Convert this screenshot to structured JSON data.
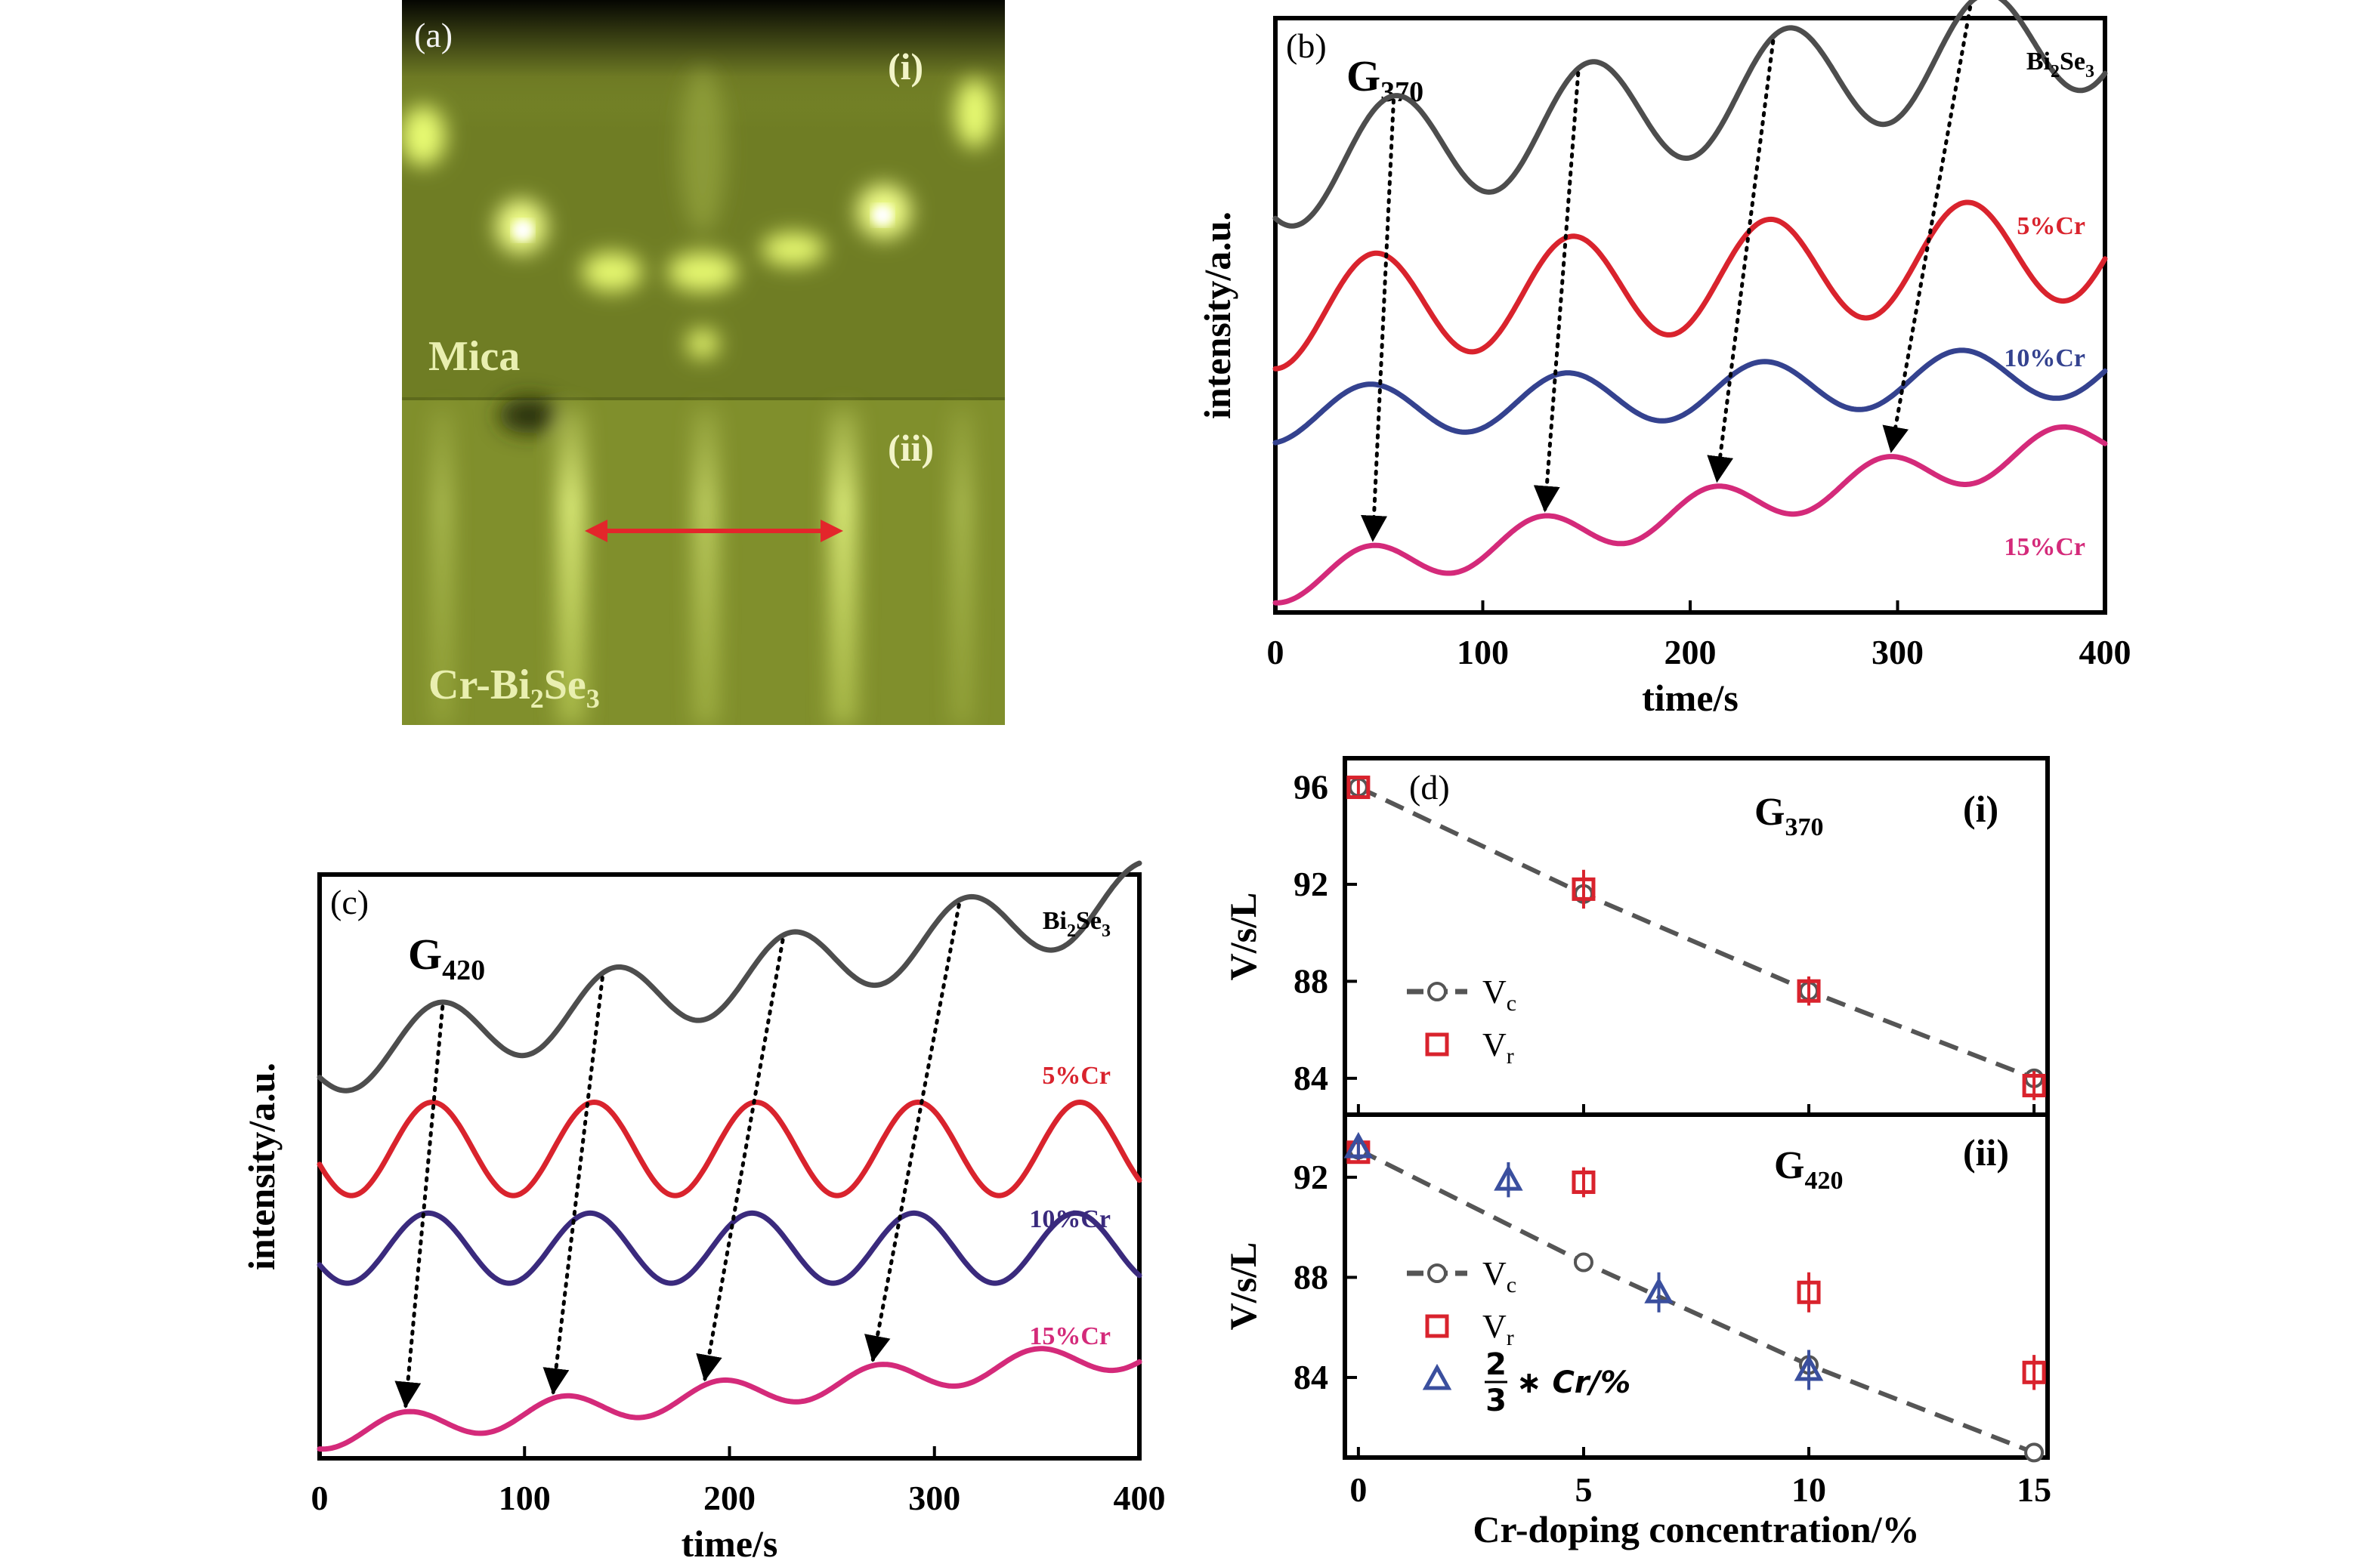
{
  "figure": {
    "panels": {
      "a": {
        "label": "(a)",
        "top_roman": "(i)",
        "bottom_roman": "(ii)",
        "top_material": "Mica",
        "bottom_material_prefix": "Cr-Bi",
        "bottom_material_sub1": "2",
        "bottom_material_mid": "Se",
        "bottom_material_sub2": "3"
      }
    },
    "colors": {
      "bi2se3": "#4d4d4d",
      "cr5": "#d9232d",
      "cr10": "#34428f",
      "cr10_c": "#3a2a7d",
      "cr15": "#d42a7a",
      "dashed_fit": "#555555",
      "vr": "#d9232d",
      "triangle": "#3a4f9e"
    }
  },
  "chart_data": [
    {
      "id": "b",
      "type": "line",
      "panel_label": "(b)",
      "group_main": "G",
      "group_sub": "370",
      "xlabel": "time/s",
      "ylabel": "intensity/a.u.",
      "xlim": [
        0,
        400
      ],
      "xticks": [
        "0",
        "100",
        "200",
        "300",
        "400"
      ],
      "series": [
        {
          "name": "Bi₂Se₃",
          "name_main": "Bi",
          "name_sub1": "2",
          "name_mid": "Se",
          "name_sub2": "3",
          "period": 95,
          "phase_peak": 57,
          "offset": 0.74,
          "amplitude": 0.095,
          "drift": 0.0006
        },
        {
          "name": "5%Cr",
          "period": 95,
          "phase_peak": 48,
          "offset": 0.5,
          "amplitude": 0.09,
          "drift": 0.0003
        },
        {
          "name": "10%Cr",
          "period": 95,
          "phase_peak": 45,
          "offset": 0.33,
          "amplitude": 0.045,
          "drift": 0.0002
        },
        {
          "name": "15%Cr",
          "period": 83,
          "phase_peak": 45,
          "offset": 0.05,
          "amplitude": 0.035,
          "drift": 0.0006
        }
      ],
      "arrow_peaks": [
        [
          57,
          47
        ],
        [
          146,
          130
        ],
        [
          240,
          213
        ],
        [
          335,
          297
        ]
      ]
    },
    {
      "id": "c",
      "type": "line",
      "panel_label": "(c)",
      "group_main": "G",
      "group_sub": "420",
      "xlabel": "time/s",
      "ylabel": "intensity/a.u.",
      "xlim": [
        0,
        400
      ],
      "xticks": [
        "0",
        "100",
        "200",
        "300",
        "400"
      ],
      "series": [
        {
          "name": "Bi₂Se₃",
          "name_main": "Bi",
          "name_sub1": "2",
          "name_mid": "Se",
          "name_sub2": "3",
          "period": 86,
          "phase_peak": 58,
          "offset": 0.68,
          "amplitude": 0.06,
          "drift": 0.0007
        },
        {
          "name": "5%Cr",
          "period": 79,
          "phase_peak": 55,
          "offset": 0.53,
          "amplitude": 0.08,
          "drift": 0.0
        },
        {
          "name": "10%Cr",
          "period": 79,
          "phase_peak": 53,
          "offset": 0.36,
          "amplitude": 0.06,
          "drift": 0.0
        },
        {
          "name": "15%Cr",
          "period": 77,
          "phase_peak": 42,
          "offset": 0.04,
          "amplitude": 0.025,
          "drift": 0.00035
        }
      ],
      "arrow_peaks": [
        [
          60,
          42
        ],
        [
          138,
          114
        ],
        [
          226,
          188
        ],
        [
          312,
          270
        ]
      ]
    },
    {
      "id": "d-i",
      "type": "scatter",
      "panel_label": "(d)",
      "roman": "(i)",
      "group_main": "G",
      "group_sub": "370",
      "ylabel": "V/s/L",
      "xlim": [
        -0.3,
        15.3
      ],
      "ylim": [
        82.5,
        97.2
      ],
      "yticks": [
        84,
        88,
        92,
        96
      ],
      "legend": [
        {
          "main": "V",
          "sub": "c"
        },
        {
          "main": "V",
          "sub": "r"
        }
      ],
      "vc": {
        "x": [
          0,
          5,
          10,
          15
        ],
        "y": [
          96.0,
          91.6,
          87.6,
          84.0
        ]
      },
      "vr": {
        "x": [
          0,
          5,
          10,
          15
        ],
        "y": [
          96.0,
          91.8,
          87.6,
          83.7
        ],
        "err": [
          0.3,
          0.8,
          0.6,
          0.6
        ]
      }
    },
    {
      "id": "d-ii",
      "type": "scatter",
      "roman": "(ii)",
      "group_main": "G",
      "group_sub": "420",
      "ylabel": "V/s/L",
      "xlabel": "Cr-doping concentration/%",
      "xlim": [
        -0.3,
        15.3
      ],
      "ylim": [
        80.8,
        94.5
      ],
      "xticks": [
        0,
        5,
        10,
        15
      ],
      "yticks": [
        84,
        88,
        92
      ],
      "legend": [
        {
          "main": "V",
          "sub": "c"
        },
        {
          "main": "V",
          "sub": "r"
        },
        {
          "frac_num": "2",
          "frac_den": "3",
          "rest": "∗ Cr/%"
        }
      ],
      "vc": {
        "x": [
          0,
          5,
          10,
          15
        ],
        "y": [
          93.1,
          88.6,
          84.5,
          81.0
        ]
      },
      "vr": {
        "x": [
          0,
          5,
          10,
          15
        ],
        "y": [
          93.0,
          91.8,
          87.4,
          84.2
        ],
        "err": [
          0.4,
          0.6,
          0.8,
          0.7
        ]
      },
      "tri": {
        "x": [
          0,
          3.33,
          6.67,
          10
        ],
        "y": [
          93.2,
          91.9,
          87.4,
          84.3
        ],
        "err": [
          0.5,
          0.7,
          0.8,
          0.8
        ]
      }
    }
  ]
}
